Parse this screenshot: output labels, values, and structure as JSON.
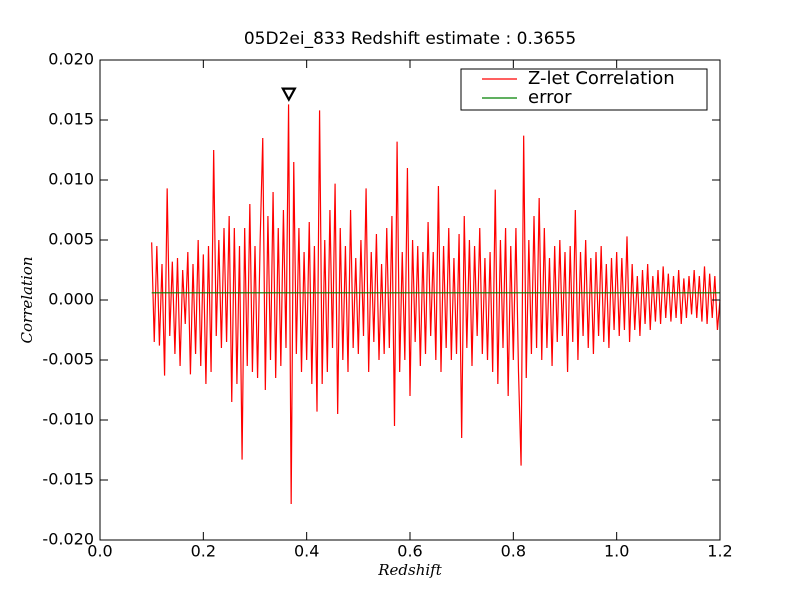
{
  "chart_data": {
    "type": "line",
    "title": "05D2ei_833 Redshift estimate : 0.3655",
    "xlabel": "Redshift",
    "ylabel": "Correlation",
    "xlim": [
      0,
      1.2
    ],
    "ylim": [
      -0.02,
      0.02
    ],
    "xticks": [
      {
        "value": 0,
        "label": "0.0"
      },
      0.2,
      0.4,
      0.6,
      0.8,
      {
        "value": 1,
        "label": "1.0"
      },
      1.2
    ],
    "yticks": [
      {
        "value": -0.02,
        "label": "-0.020"
      },
      -0.015,
      {
        "value": -0.01,
        "label": "-0.010"
      },
      -0.005,
      {
        "value": 0,
        "label": "0.000"
      },
      0.005,
      {
        "value": 0.01,
        "label": "0.010"
      },
      0.015,
      {
        "value": 0.02,
        "label": "0.020"
      }
    ],
    "legend": "upper right",
    "marker": {
      "x": 0.3655,
      "y": 0.0172
    },
    "series": [
      {
        "name": "Z-let Correlation",
        "color": "#ff0000",
        "x": [
          0.1,
          0.105,
          0.11,
          0.115,
          0.12,
          0.125,
          0.13,
          0.135,
          0.14,
          0.145,
          0.15,
          0.155,
          0.16,
          0.165,
          0.17,
          0.175,
          0.18,
          0.185,
          0.19,
          0.195,
          0.2,
          0.205,
          0.21,
          0.215,
          0.22,
          0.225,
          0.23,
          0.235,
          0.24,
          0.245,
          0.25,
          0.255,
          0.26,
          0.265,
          0.27,
          0.275,
          0.28,
          0.285,
          0.29,
          0.295,
          0.3,
          0.305,
          0.31,
          0.315,
          0.32,
          0.325,
          0.33,
          0.335,
          0.34,
          0.345,
          0.35,
          0.355,
          0.36,
          0.365,
          0.37,
          0.375,
          0.38,
          0.385,
          0.39,
          0.395,
          0.4,
          0.405,
          0.41,
          0.415,
          0.42,
          0.425,
          0.43,
          0.435,
          0.44,
          0.445,
          0.45,
          0.455,
          0.46,
          0.465,
          0.47,
          0.475,
          0.48,
          0.485,
          0.49,
          0.495,
          0.5,
          0.505,
          0.51,
          0.515,
          0.52,
          0.525,
          0.53,
          0.535,
          0.54,
          0.545,
          0.55,
          0.555,
          0.56,
          0.565,
          0.57,
          0.575,
          0.58,
          0.585,
          0.59,
          0.595,
          0.6,
          0.605,
          0.61,
          0.615,
          0.62,
          0.625,
          0.63,
          0.635,
          0.64,
          0.645,
          0.65,
          0.655,
          0.66,
          0.665,
          0.67,
          0.675,
          0.68,
          0.685,
          0.69,
          0.695,
          0.7,
          0.705,
          0.71,
          0.715,
          0.72,
          0.725,
          0.73,
          0.735,
          0.74,
          0.745,
          0.75,
          0.755,
          0.76,
          0.765,
          0.77,
          0.775,
          0.78,
          0.785,
          0.79,
          0.795,
          0.8,
          0.805,
          0.81,
          0.815,
          0.82,
          0.825,
          0.83,
          0.835,
          0.84,
          0.845,
          0.85,
          0.855,
          0.86,
          0.865,
          0.87,
          0.875,
          0.88,
          0.885,
          0.89,
          0.895,
          0.9,
          0.905,
          0.91,
          0.915,
          0.92,
          0.925,
          0.93,
          0.935,
          0.94,
          0.945,
          0.95,
          0.955,
          0.96,
          0.965,
          0.97,
          0.975,
          0.98,
          0.985,
          0.99,
          0.995,
          1.0,
          1.005,
          1.01,
          1.015,
          1.02,
          1.025,
          1.03,
          1.035,
          1.04,
          1.045,
          1.05,
          1.055,
          1.06,
          1.065,
          1.07,
          1.075,
          1.08,
          1.085,
          1.09,
          1.095,
          1.1,
          1.105,
          1.11,
          1.115,
          1.12,
          1.125,
          1.13,
          1.135,
          1.14,
          1.145,
          1.15,
          1.155,
          1.16,
          1.165,
          1.17,
          1.175,
          1.18,
          1.185,
          1.19,
          1.195,
          1.2
        ],
        "values": [
          0.0048,
          -0.0035,
          0.0045,
          -0.0038,
          0.003,
          -0.0063,
          0.0093,
          -0.003,
          0.0032,
          -0.0045,
          0.0035,
          -0.0055,
          0.0025,
          -0.002,
          0.004,
          -0.0062,
          0.003,
          -0.0045,
          0.005,
          -0.0055,
          0.0038,
          -0.007,
          0.0045,
          -0.006,
          0.0125,
          -0.003,
          0.005,
          -0.004,
          0.006,
          -0.0035,
          0.007,
          -0.0085,
          0.006,
          -0.007,
          0.0045,
          -0.0133,
          0.006,
          -0.0055,
          0.008,
          -0.006,
          0.0045,
          -0.0065,
          0.005,
          0.0135,
          -0.0075,
          0.007,
          -0.005,
          0.009,
          -0.0065,
          0.006,
          -0.0055,
          0.0075,
          -0.004,
          0.0163,
          -0.017,
          0.0115,
          -0.0045,
          0.006,
          -0.006,
          0.004,
          -0.005,
          0.0065,
          -0.007,
          0.0045,
          -0.0093,
          0.0158,
          -0.007,
          0.005,
          -0.006,
          0.0075,
          -0.004,
          0.0097,
          -0.0095,
          0.006,
          -0.005,
          0.0045,
          -0.006,
          0.0075,
          -0.004,
          0.0035,
          -0.0045,
          0.005,
          -0.003,
          0.0093,
          -0.006,
          0.004,
          -0.0035,
          0.0055,
          -0.005,
          0.003,
          -0.0045,
          0.006,
          -0.004,
          0.007,
          -0.0105,
          0.0132,
          -0.006,
          0.004,
          -0.005,
          0.011,
          -0.008,
          0.005,
          -0.0035,
          0.0045,
          -0.0055,
          0.004,
          -0.0045,
          0.0065,
          -0.003,
          0.004,
          -0.005,
          0.0095,
          -0.006,
          0.0045,
          -0.004,
          0.006,
          -0.005,
          0.0035,
          -0.0045,
          0.0055,
          -0.0115,
          0.007,
          -0.004,
          0.005,
          -0.0055,
          0.0045,
          -0.003,
          0.006,
          -0.0045,
          0.0035,
          -0.005,
          0.004,
          -0.006,
          0.0092,
          -0.007,
          0.005,
          -0.004,
          0.006,
          -0.008,
          0.0045,
          -0.005,
          0.006,
          -0.006,
          -0.0138,
          0.0137,
          -0.0065,
          0.005,
          -0.0045,
          0.007,
          -0.004,
          0.0085,
          -0.005,
          0.006,
          -0.004,
          0.0035,
          -0.0055,
          0.0045,
          -0.0035,
          0.005,
          -0.003,
          0.004,
          -0.006,
          0.0045,
          -0.0035,
          0.0075,
          -0.005,
          0.004,
          -0.003,
          0.005,
          -0.004,
          0.0035,
          -0.0045,
          0.004,
          -0.003,
          0.0045,
          -0.0035,
          0.003,
          -0.004,
          0.0035,
          -0.0025,
          0.004,
          -0.003,
          0.0035,
          -0.0025,
          0.0053,
          -0.0035,
          0.003,
          -0.0025,
          0.002,
          -0.003,
          0.0025,
          -0.002,
          0.003,
          -0.0025,
          0.002,
          -0.0018,
          0.0025,
          -0.002,
          0.0028,
          -0.0015,
          0.0022,
          -0.0018,
          0.002,
          -0.0015,
          0.0025,
          -0.002,
          0.0018,
          -0.0015,
          0.002,
          -0.0012,
          0.0025,
          -0.0015,
          0.002,
          -0.0018,
          0.0028,
          -0.002,
          0.0022,
          -0.0015,
          0.002,
          -0.0025,
          0
        ]
      },
      {
        "name": "error",
        "color": "#008000",
        "x": [
          0.1,
          1.2
        ],
        "values": [
          0.0006,
          0.0006
        ]
      }
    ]
  }
}
